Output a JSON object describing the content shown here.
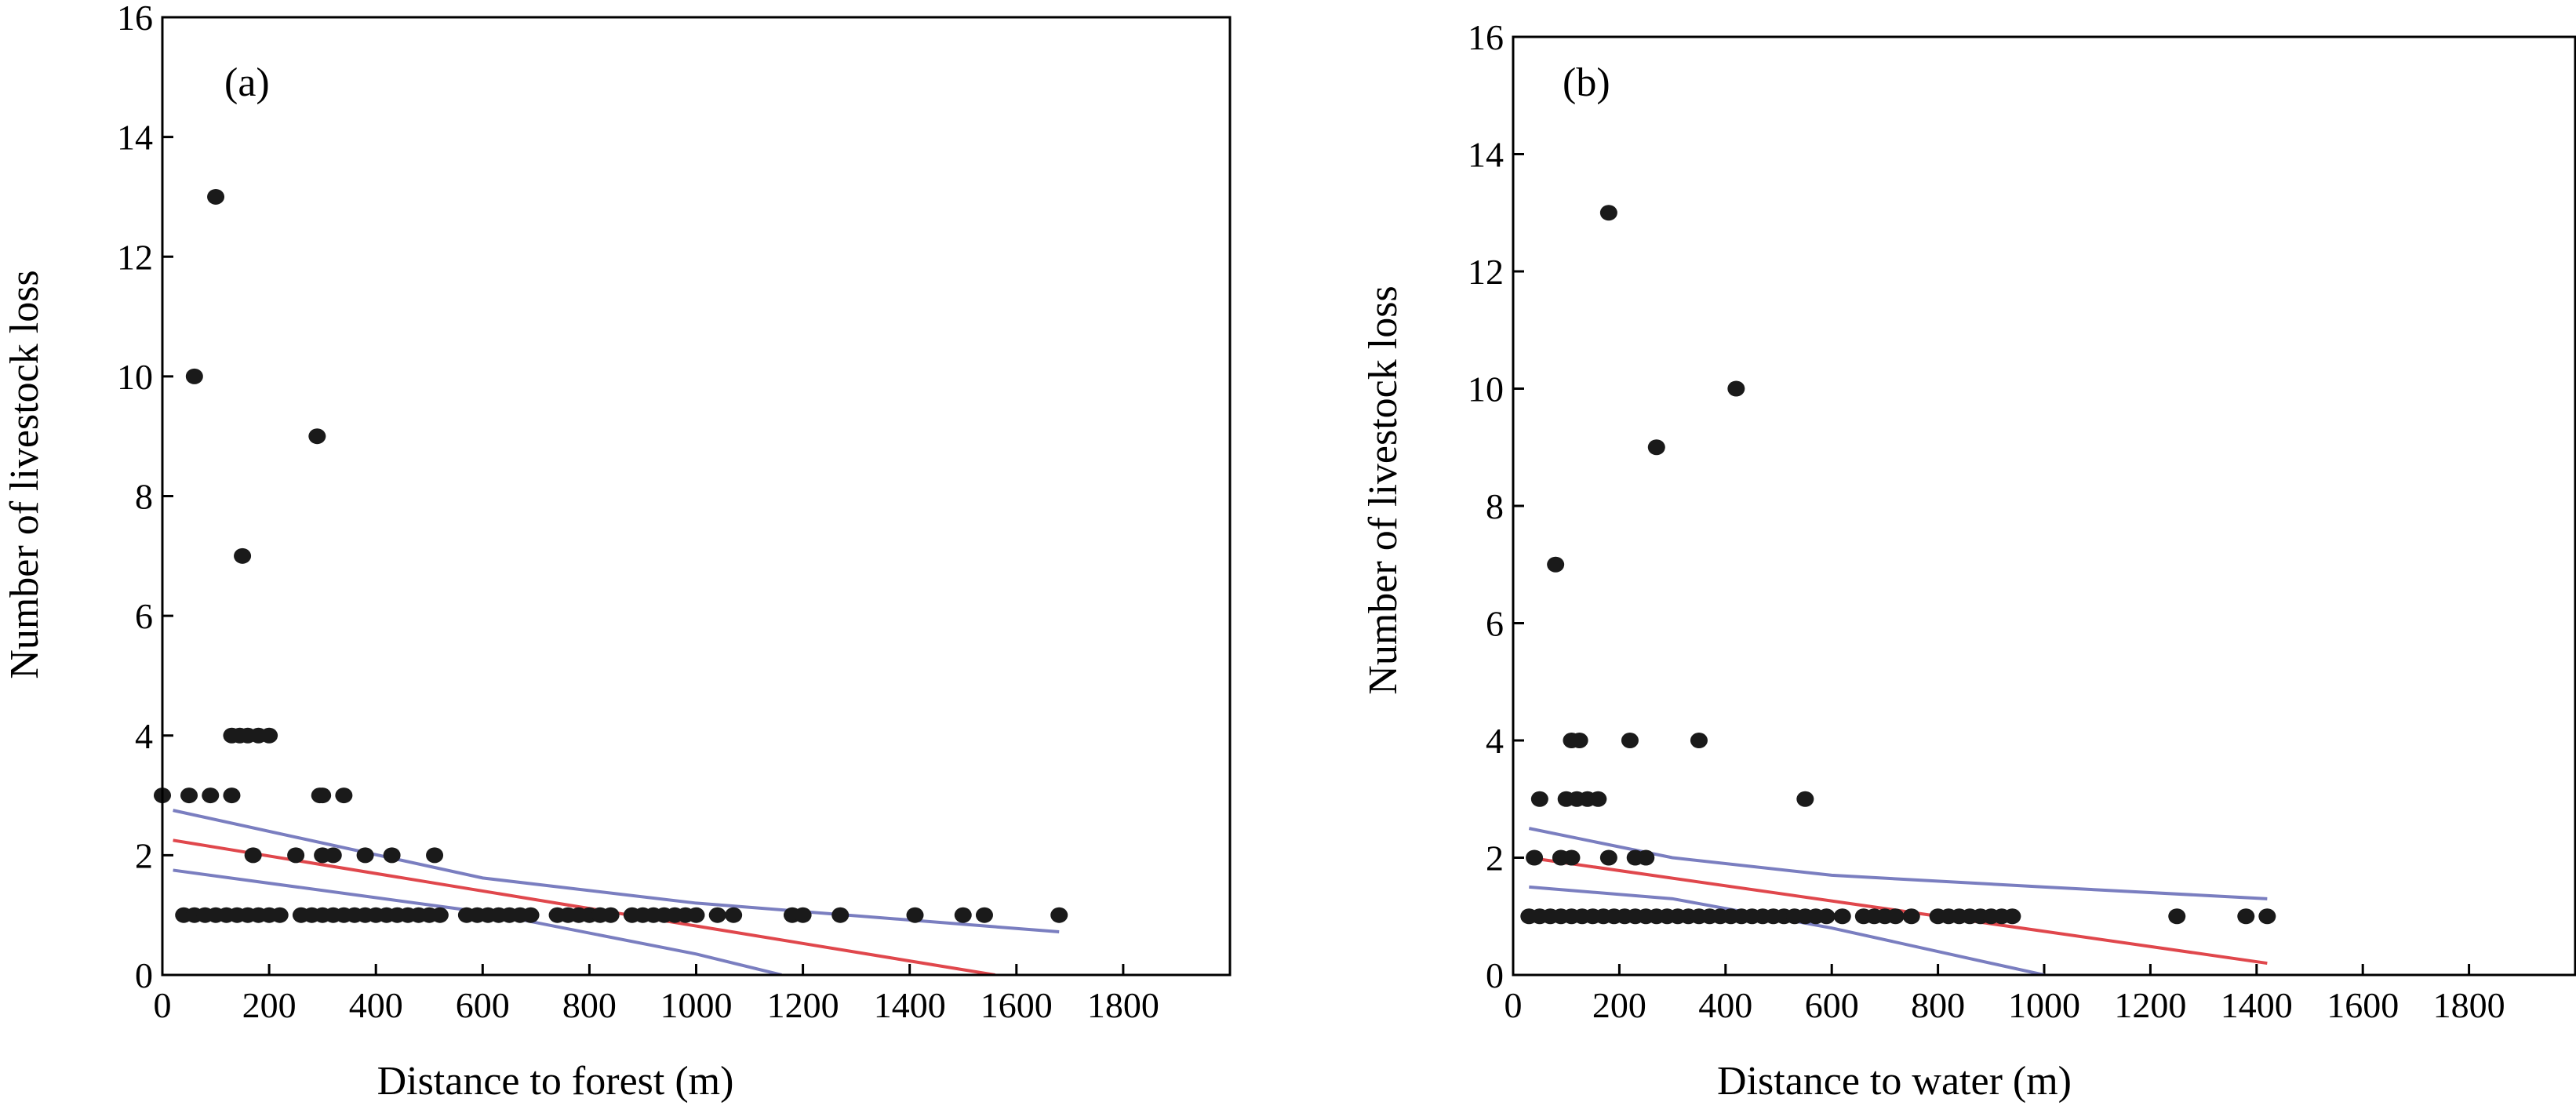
{
  "chart_data": [
    {
      "type": "scatter",
      "panel_label": "(a)",
      "title": "",
      "xlabel": "Distance to forest (m)",
      "ylabel": "Number of livestock loss",
      "xlim": [
        0,
        2000
      ],
      "ylim": [
        0,
        16
      ],
      "xticks": [
        "0",
        "200",
        "400",
        "600",
        "800",
        "1000",
        "1200",
        "1400",
        "1600",
        "1800"
      ],
      "yticks": [
        "0",
        "2",
        "4",
        "6",
        "8",
        "10",
        "12",
        "14",
        "16"
      ],
      "grid": false,
      "point_color": "#1a1a1a",
      "points": [
        {
          "x": 0,
          "y": 3
        },
        {
          "x": 50,
          "y": 3
        },
        {
          "x": 90,
          "y": 3
        },
        {
          "x": 130,
          "y": 3
        },
        {
          "x": 60,
          "y": 10
        },
        {
          "x": 100,
          "y": 13
        },
        {
          "x": 150,
          "y": 7
        },
        {
          "x": 130,
          "y": 4
        },
        {
          "x": 145,
          "y": 4
        },
        {
          "x": 160,
          "y": 4
        },
        {
          "x": 180,
          "y": 4
        },
        {
          "x": 200,
          "y": 4
        },
        {
          "x": 290,
          "y": 9
        },
        {
          "x": 300,
          "y": 3
        },
        {
          "x": 340,
          "y": 3
        },
        {
          "x": 295,
          "y": 3
        },
        {
          "x": 170,
          "y": 2
        },
        {
          "x": 250,
          "y": 2
        },
        {
          "x": 300,
          "y": 2
        },
        {
          "x": 320,
          "y": 2
        },
        {
          "x": 380,
          "y": 2
        },
        {
          "x": 430,
          "y": 2
        },
        {
          "x": 510,
          "y": 2
        },
        {
          "x": 40,
          "y": 1
        },
        {
          "x": 60,
          "y": 1
        },
        {
          "x": 80,
          "y": 1
        },
        {
          "x": 100,
          "y": 1
        },
        {
          "x": 120,
          "y": 1
        },
        {
          "x": 140,
          "y": 1
        },
        {
          "x": 160,
          "y": 1
        },
        {
          "x": 180,
          "y": 1
        },
        {
          "x": 200,
          "y": 1
        },
        {
          "x": 220,
          "y": 1
        },
        {
          "x": 260,
          "y": 1
        },
        {
          "x": 280,
          "y": 1
        },
        {
          "x": 300,
          "y": 1
        },
        {
          "x": 320,
          "y": 1
        },
        {
          "x": 340,
          "y": 1
        },
        {
          "x": 360,
          "y": 1
        },
        {
          "x": 380,
          "y": 1
        },
        {
          "x": 400,
          "y": 1
        },
        {
          "x": 420,
          "y": 1
        },
        {
          "x": 440,
          "y": 1
        },
        {
          "x": 460,
          "y": 1
        },
        {
          "x": 480,
          "y": 1
        },
        {
          "x": 500,
          "y": 1
        },
        {
          "x": 520,
          "y": 1
        },
        {
          "x": 570,
          "y": 1
        },
        {
          "x": 590,
          "y": 1
        },
        {
          "x": 610,
          "y": 1
        },
        {
          "x": 630,
          "y": 1
        },
        {
          "x": 650,
          "y": 1
        },
        {
          "x": 670,
          "y": 1
        },
        {
          "x": 690,
          "y": 1
        },
        {
          "x": 740,
          "y": 1
        },
        {
          "x": 760,
          "y": 1
        },
        {
          "x": 780,
          "y": 1
        },
        {
          "x": 800,
          "y": 1
        },
        {
          "x": 820,
          "y": 1
        },
        {
          "x": 840,
          "y": 1
        },
        {
          "x": 880,
          "y": 1
        },
        {
          "x": 900,
          "y": 1
        },
        {
          "x": 920,
          "y": 1
        },
        {
          "x": 940,
          "y": 1
        },
        {
          "x": 960,
          "y": 1
        },
        {
          "x": 980,
          "y": 1
        },
        {
          "x": 1000,
          "y": 1
        },
        {
          "x": 1040,
          "y": 1
        },
        {
          "x": 1070,
          "y": 1
        },
        {
          "x": 1180,
          "y": 1
        },
        {
          "x": 1200,
          "y": 1
        },
        {
          "x": 1270,
          "y": 1
        },
        {
          "x": 1410,
          "y": 1
        },
        {
          "x": 1500,
          "y": 1
        },
        {
          "x": 1540,
          "y": 1
        },
        {
          "x": 1680,
          "y": 1
        }
      ],
      "lines": [
        {
          "role": "fit",
          "color": "#e0474c",
          "x": [
            20,
            1560
          ],
          "y": [
            2.25,
            0
          ]
        },
        {
          "role": "upper bound",
          "color": "#7a7ec0",
          "x": [
            20,
            600,
            1000,
            1680
          ],
          "y": [
            2.75,
            1.62,
            1.2,
            0.72
          ]
        },
        {
          "role": "lower bound",
          "color": "#7a7ec0",
          "x": [
            20,
            600,
            1000,
            1160
          ],
          "y": [
            1.75,
            1.05,
            0.35,
            0
          ]
        }
      ]
    },
    {
      "type": "scatter",
      "panel_label": "(b)",
      "title": "",
      "xlabel": "Distance to water (m)",
      "ylabel": "Number of livestock loss",
      "xlim": [
        0,
        2000
      ],
      "ylim": [
        0,
        16
      ],
      "xticks": [
        "0",
        "200",
        "400",
        "600",
        "800",
        "1000",
        "1200",
        "1400",
        "1600",
        "1800"
      ],
      "yticks": [
        "0",
        "2",
        "4",
        "6",
        "8",
        "10",
        "12",
        "14",
        "16"
      ],
      "grid": false,
      "point_color": "#1a1a1a",
      "points": [
        {
          "x": 180,
          "y": 13
        },
        {
          "x": 420,
          "y": 10
        },
        {
          "x": 270,
          "y": 9
        },
        {
          "x": 80,
          "y": 7
        },
        {
          "x": 110,
          "y": 4
        },
        {
          "x": 125,
          "y": 4
        },
        {
          "x": 220,
          "y": 4
        },
        {
          "x": 350,
          "y": 4
        },
        {
          "x": 50,
          "y": 3
        },
        {
          "x": 100,
          "y": 3
        },
        {
          "x": 120,
          "y": 3
        },
        {
          "x": 140,
          "y": 3
        },
        {
          "x": 160,
          "y": 3
        },
        {
          "x": 550,
          "y": 3
        },
        {
          "x": 40,
          "y": 2
        },
        {
          "x": 90,
          "y": 2
        },
        {
          "x": 110,
          "y": 2
        },
        {
          "x": 180,
          "y": 2
        },
        {
          "x": 230,
          "y": 2
        },
        {
          "x": 250,
          "y": 2
        },
        {
          "x": 30,
          "y": 1
        },
        {
          "x": 50,
          "y": 1
        },
        {
          "x": 70,
          "y": 1
        },
        {
          "x": 90,
          "y": 1
        },
        {
          "x": 110,
          "y": 1
        },
        {
          "x": 130,
          "y": 1
        },
        {
          "x": 150,
          "y": 1
        },
        {
          "x": 170,
          "y": 1
        },
        {
          "x": 190,
          "y": 1
        },
        {
          "x": 210,
          "y": 1
        },
        {
          "x": 230,
          "y": 1
        },
        {
          "x": 250,
          "y": 1
        },
        {
          "x": 270,
          "y": 1
        },
        {
          "x": 290,
          "y": 1
        },
        {
          "x": 310,
          "y": 1
        },
        {
          "x": 330,
          "y": 1
        },
        {
          "x": 350,
          "y": 1
        },
        {
          "x": 370,
          "y": 1
        },
        {
          "x": 390,
          "y": 1
        },
        {
          "x": 410,
          "y": 1
        },
        {
          "x": 430,
          "y": 1
        },
        {
          "x": 450,
          "y": 1
        },
        {
          "x": 470,
          "y": 1
        },
        {
          "x": 490,
          "y": 1
        },
        {
          "x": 510,
          "y": 1
        },
        {
          "x": 530,
          "y": 1
        },
        {
          "x": 550,
          "y": 1
        },
        {
          "x": 570,
          "y": 1
        },
        {
          "x": 590,
          "y": 1
        },
        {
          "x": 620,
          "y": 1
        },
        {
          "x": 660,
          "y": 1
        },
        {
          "x": 680,
          "y": 1
        },
        {
          "x": 700,
          "y": 1
        },
        {
          "x": 720,
          "y": 1
        },
        {
          "x": 750,
          "y": 1
        },
        {
          "x": 800,
          "y": 1
        },
        {
          "x": 820,
          "y": 1
        },
        {
          "x": 840,
          "y": 1
        },
        {
          "x": 860,
          "y": 1
        },
        {
          "x": 880,
          "y": 1
        },
        {
          "x": 900,
          "y": 1
        },
        {
          "x": 920,
          "y": 1
        },
        {
          "x": 940,
          "y": 1
        },
        {
          "x": 1250,
          "y": 1
        },
        {
          "x": 1380,
          "y": 1
        },
        {
          "x": 1420,
          "y": 1
        }
      ],
      "lines": [
        {
          "role": "fit",
          "color": "#e0474c",
          "x": [
            30,
            1420
          ],
          "y": [
            2.0,
            0.2
          ]
        },
        {
          "role": "upper bound",
          "color": "#7a7ec0",
          "x": [
            30,
            300,
            600,
            1000,
            1420
          ],
          "y": [
            2.5,
            2.0,
            1.7,
            1.5,
            1.3
          ]
        },
        {
          "role": "lower bound",
          "color": "#7a7ec0",
          "x": [
            30,
            300,
            600,
            1000
          ],
          "y": [
            1.5,
            1.3,
            0.8,
            0
          ]
        }
      ]
    }
  ]
}
